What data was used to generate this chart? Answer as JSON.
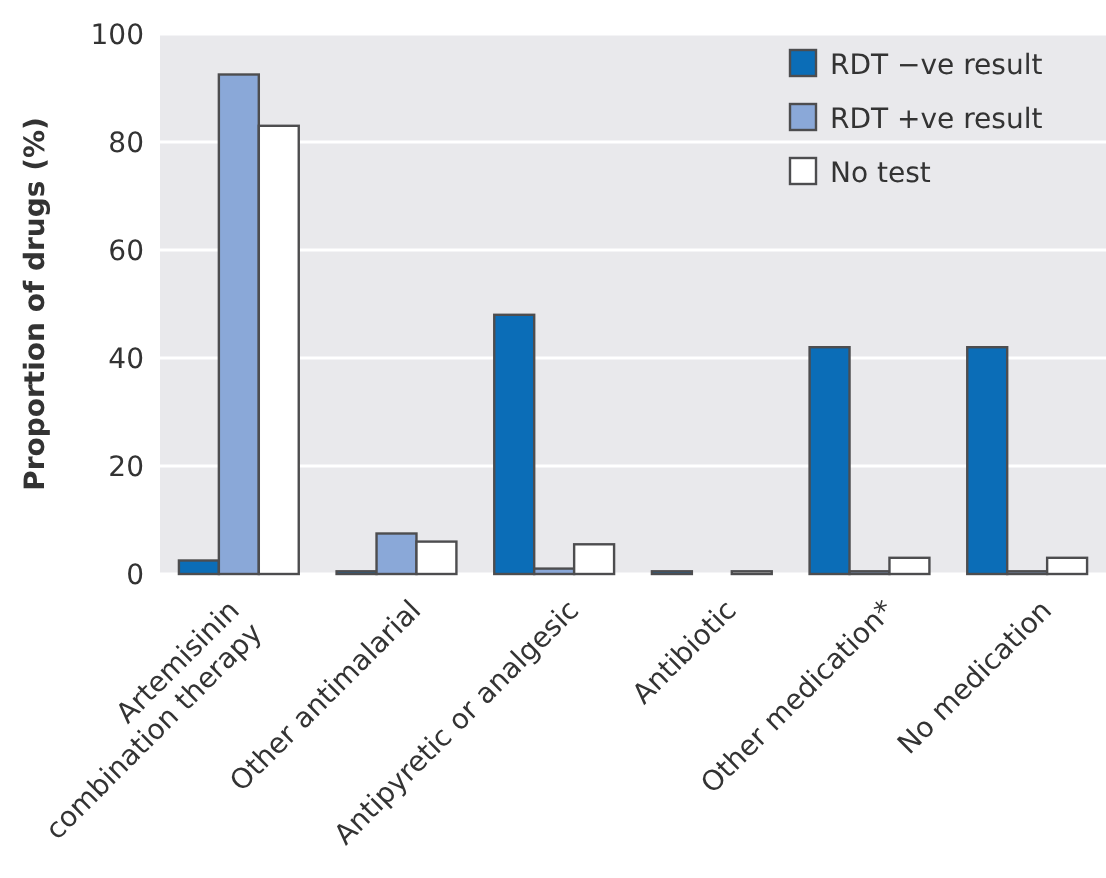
{
  "chart_data": {
    "type": "bar",
    "ylabel": "Proportion of drugs (%)",
    "categories": [
      "Artemisinin\ncombination therapy",
      "Other antimalarial",
      "Antipyretic or analgesic",
      "Antibiotic",
      "Other medication*",
      "No medication"
    ],
    "series": [
      {
        "name": "RDT −ve result",
        "color": "#0b6db7",
        "values": [
          2.5,
          0.5,
          48,
          0.5,
          42,
          42
        ]
      },
      {
        "name": "RDT +ve result",
        "color": "#8aa8d8",
        "values": [
          92.5,
          7.5,
          1,
          0,
          0.5,
          0.5
        ]
      },
      {
        "name": "No test",
        "color": "#ffffff",
        "values": [
          83,
          6,
          5.5,
          0.5,
          3,
          3
        ]
      }
    ],
    "ylim": [
      0,
      100
    ],
    "yticks": [
      0,
      20,
      40,
      60,
      80,
      100
    ],
    "grid": "y",
    "legend": "top right"
  }
}
